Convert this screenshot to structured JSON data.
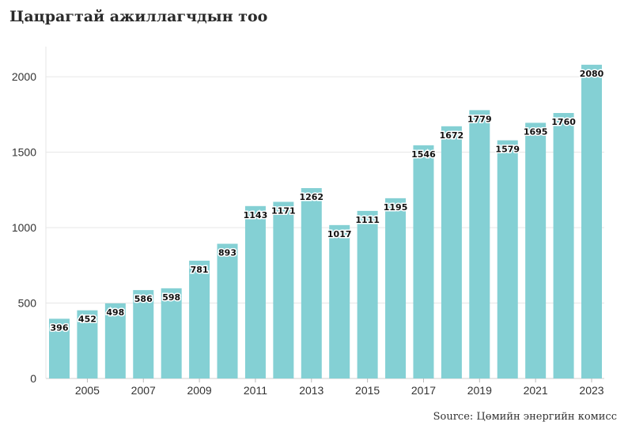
{
  "chart_data": {
    "type": "bar",
    "title": "Цацрагтай ажиллагчдын тоо",
    "xlabel": "",
    "ylabel": "",
    "categories": [
      "2004",
      "2005",
      "2006",
      "2007",
      "2008",
      "2009",
      "2010",
      "2011",
      "2012",
      "2013",
      "2014",
      "2015",
      "2016",
      "2017",
      "2018",
      "2019",
      "2020",
      "2021",
      "2022",
      "2023"
    ],
    "values": [
      396,
      452,
      498,
      586,
      598,
      781,
      893,
      1143,
      1171,
      1262,
      1017,
      1111,
      1195,
      1546,
      1672,
      1779,
      1579,
      1695,
      1760,
      2080
    ],
    "x_tick_labels": [
      "2005",
      "2007",
      "2009",
      "2011",
      "2013",
      "2015",
      "2017",
      "2019",
      "2021",
      "2023"
    ],
    "y_ticks": [
      0,
      500,
      1000,
      1500,
      2000
    ],
    "ylim": [
      0,
      2200
    ],
    "grid": "horizontal",
    "bar_color": "#84d0d4",
    "source": "Source: Цөмийн энергийн комисс"
  }
}
